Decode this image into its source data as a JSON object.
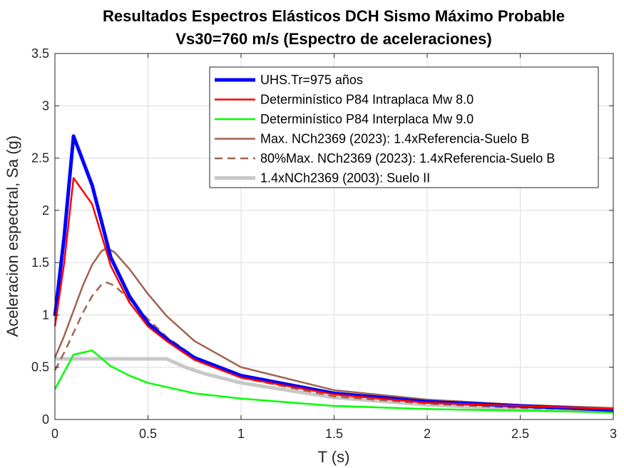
{
  "chart_data": {
    "type": "line",
    "title": [
      "Resultados Espectros Elásticos DCH Sismo Máximo Probable",
      "Vs30=760 m/s (Espectro de aceleraciones)"
    ],
    "xlabel": "T (s)",
    "ylabel": "Aceleracion espectral, Sa (g)",
    "xlim": [
      0,
      3
    ],
    "ylim": [
      0,
      3.5
    ],
    "xticks": [
      0,
      0.5,
      1,
      1.5,
      2,
      2.5,
      3
    ],
    "xtick_labels": [
      "0",
      "0.5",
      "1",
      "1.5",
      "2",
      "2.5",
      "3"
    ],
    "yticks": [
      0,
      0.5,
      1,
      1.5,
      2,
      2.5,
      3,
      3.5
    ],
    "ytick_labels": [
      "0",
      "0.5",
      "1",
      "1.5",
      "2",
      "2.5",
      "3",
      "3.5"
    ],
    "grid": true,
    "legend_position": "top-right",
    "series": [
      {
        "name": "UHS.Tr=975 años",
        "color": "#0000ff",
        "dash": "solid",
        "weight": "thick",
        "x": [
          0,
          0.05,
          0.1,
          0.2,
          0.3,
          0.4,
          0.5,
          0.6,
          0.75,
          1.0,
          1.5,
          2.0,
          3.0
        ],
        "y": [
          0.99,
          1.75,
          2.71,
          2.24,
          1.55,
          1.18,
          0.92,
          0.77,
          0.59,
          0.42,
          0.25,
          0.17,
          0.09
        ]
      },
      {
        "name": "Determinístico P84 Intraplaca Mw 8.0",
        "color": "#ff0000",
        "dash": "solid",
        "weight": "normal",
        "x": [
          0,
          0.05,
          0.1,
          0.2,
          0.3,
          0.4,
          0.5,
          0.6,
          0.75,
          1.0,
          1.5,
          2.0,
          3.0
        ],
        "y": [
          0.89,
          1.5,
          2.31,
          2.06,
          1.47,
          1.12,
          0.89,
          0.75,
          0.57,
          0.4,
          0.24,
          0.16,
          0.1
        ]
      },
      {
        "name": "Determinístico P84 Interplaca Mw 9.0",
        "color": "#00ff00",
        "dash": "solid",
        "weight": "normal",
        "x": [
          0,
          0.1,
          0.2,
          0.3,
          0.4,
          0.5,
          0.75,
          1.0,
          1.5,
          2.0,
          3.0
        ],
        "y": [
          0.29,
          0.62,
          0.66,
          0.51,
          0.42,
          0.35,
          0.25,
          0.2,
          0.13,
          0.1,
          0.07
        ]
      },
      {
        "name": "Max. NCh2369 (2023): 1.4xReferencia-Suelo B",
        "color": "#a0634d",
        "dash": "solid",
        "weight": "normal",
        "x": [
          0,
          0.05,
          0.1,
          0.15,
          0.2,
          0.25,
          0.28,
          0.32,
          0.4,
          0.5,
          0.6,
          0.75,
          1.0,
          1.5,
          2.0,
          2.5,
          3.0
        ],
        "y": [
          0.59,
          0.8,
          1.04,
          1.28,
          1.48,
          1.61,
          1.64,
          1.6,
          1.44,
          1.2,
          0.99,
          0.75,
          0.5,
          0.28,
          0.19,
          0.14,
          0.11
        ]
      },
      {
        "name": "80%Max. NCh2369 (2023): 1.4xReferencia-Suelo B",
        "color": "#a0634d",
        "dash": "dashed",
        "weight": "normal",
        "x": [
          0,
          0.05,
          0.1,
          0.15,
          0.2,
          0.25,
          0.28,
          0.32,
          0.4,
          0.5,
          0.6,
          0.75,
          1.0,
          1.5,
          2.0,
          2.5,
          3.0
        ],
        "y": [
          0.47,
          0.64,
          0.83,
          1.02,
          1.18,
          1.29,
          1.31,
          1.28,
          1.15,
          0.96,
          0.79,
          0.6,
          0.4,
          0.22,
          0.15,
          0.11,
          0.09
        ]
      },
      {
        "name": "1.4xNCh2369 (2003): Suelo II",
        "color": "#c8c8c8",
        "dash": "solid",
        "weight": "thick",
        "x": [
          0,
          0.1,
          0.2,
          0.3,
          0.4,
          0.5,
          0.6,
          0.7,
          0.8,
          1.0,
          1.5,
          2.0,
          2.5,
          3.0
        ],
        "y": [
          0.58,
          0.58,
          0.58,
          0.58,
          0.58,
          0.58,
          0.58,
          0.5,
          0.44,
          0.35,
          0.21,
          0.14,
          0.1,
          0.07
        ]
      }
    ]
  }
}
